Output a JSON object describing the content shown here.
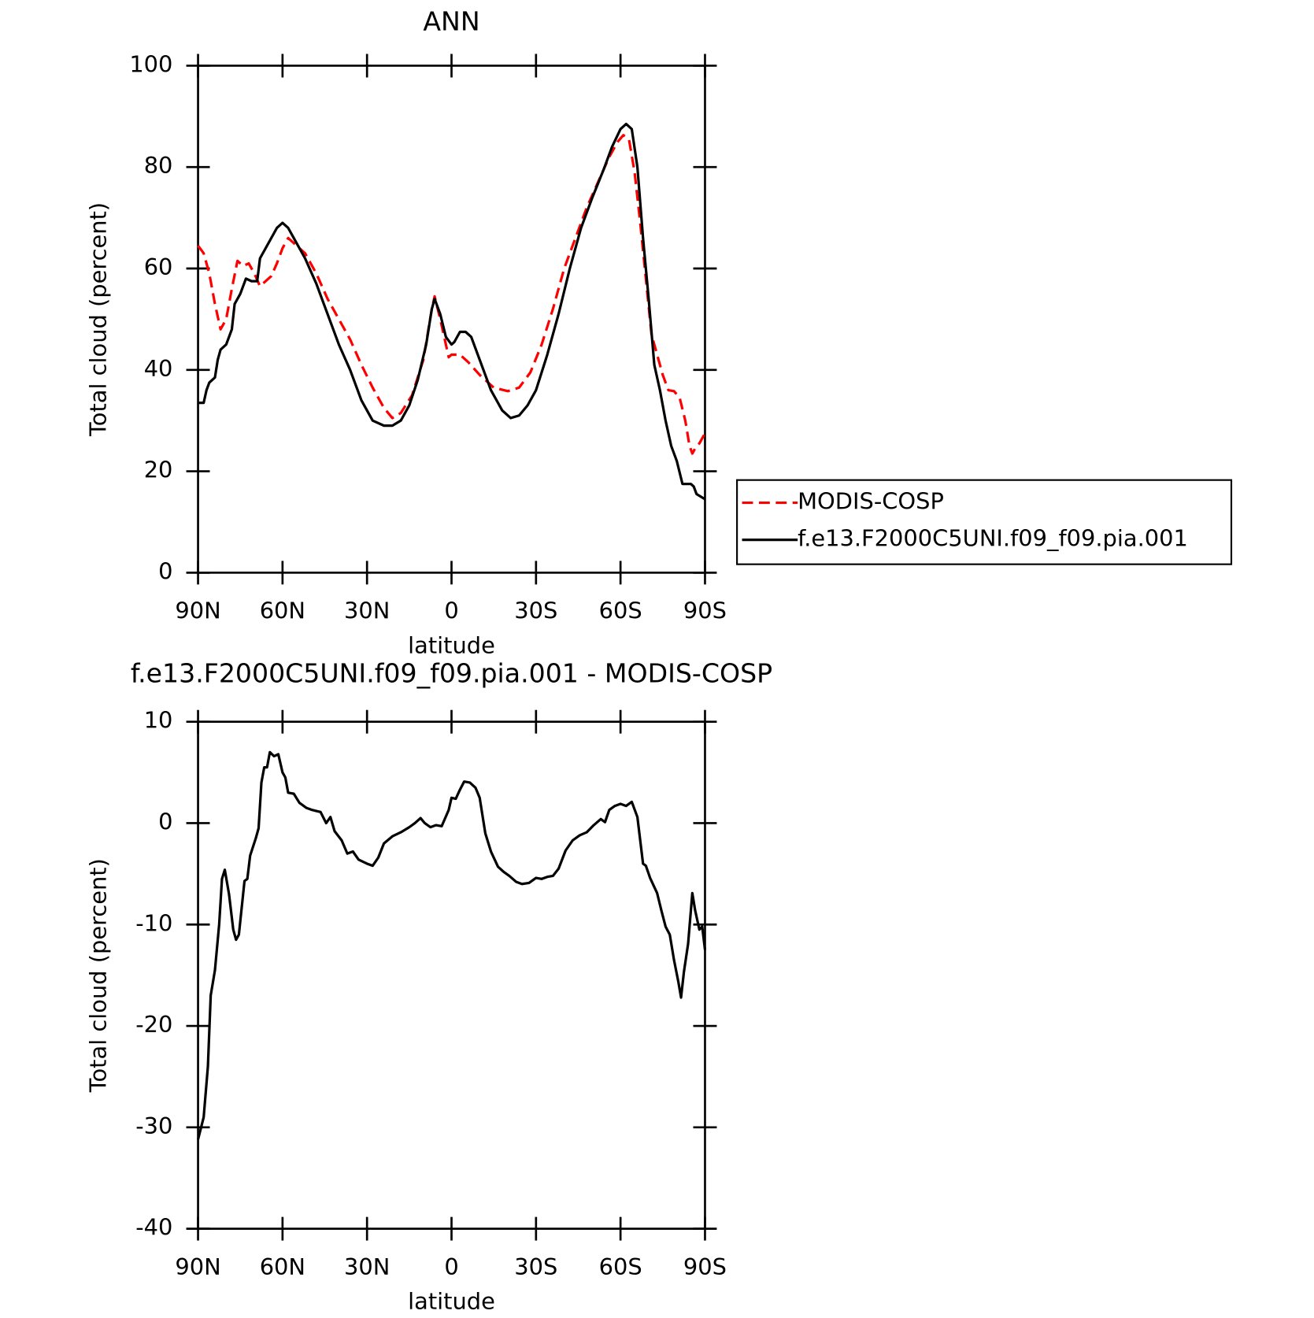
{
  "chart_data": [
    {
      "type": "line",
      "title": "ANN",
      "xlabel": "latitude",
      "ylabel": "Total cloud (percent)",
      "xlim": [
        90,
        -90
      ],
      "xticks": [
        {
          "value": 90,
          "label": "90N"
        },
        {
          "value": 60,
          "label": "60N"
        },
        {
          "value": 30,
          "label": "30N"
        },
        {
          "value": 0,
          "label": "0"
        },
        {
          "value": -30,
          "label": "30S"
        },
        {
          "value": -60,
          "label": "60S"
        },
        {
          "value": -90,
          "label": "90S"
        }
      ],
      "ylim": [
        0,
        100
      ],
      "yticks": [
        0,
        20,
        40,
        60,
        80,
        100
      ],
      "legend": "right",
      "series": [
        {
          "name": "MODIS-COSP",
          "color": "#ff0000",
          "dash": "dashed",
          "x": [
            90,
            88,
            86,
            84,
            82,
            80,
            78,
            76,
            74,
            72,
            70,
            68,
            66,
            64,
            62,
            60,
            58,
            56,
            52,
            48,
            44,
            40,
            36,
            32,
            28,
            24,
            21,
            18,
            14,
            10,
            7,
            6,
            4,
            2,
            1,
            0,
            -3,
            -6,
            -10,
            -15,
            -20,
            -24,
            -28,
            -32,
            -36,
            -40,
            -44,
            -48,
            -52,
            -56,
            -59,
            -61,
            -63,
            -65,
            -67,
            -69,
            -71,
            -73,
            -75,
            -77,
            -79,
            -81,
            -83,
            -84.5,
            -85.5,
            -87,
            -88,
            -90
          ],
          "values": [
            64.5,
            63,
            59,
            53,
            48,
            50,
            56,
            61.5,
            60.5,
            61,
            59,
            56.5,
            57.5,
            58.5,
            61,
            64,
            66,
            65,
            63,
            59,
            54,
            50,
            46,
            41,
            36.5,
            32.5,
            30.5,
            31.5,
            35,
            42,
            52,
            54.5,
            50,
            45,
            42.5,
            43,
            43,
            41.5,
            39,
            36.5,
            35.8,
            36.5,
            39.5,
            45,
            52,
            60,
            66,
            72,
            77,
            82,
            85,
            86.3,
            85.5,
            79,
            69,
            58,
            47,
            43,
            39,
            36,
            35.8,
            34.5,
            30,
            25,
            23.5,
            25,
            25.5,
            27.5
          ]
        },
        {
          "name": "f.e13.F2000C5UNI.f09_f09.pia.001",
          "color": "#000000",
          "dash": "solid",
          "x": [
            90,
            88,
            87,
            86,
            84,
            83,
            82,
            80,
            78,
            77,
            75,
            73,
            71,
            69,
            68,
            66,
            64,
            62,
            60,
            58,
            55,
            52,
            48,
            44,
            40,
            36,
            32,
            28,
            24,
            21,
            18,
            15,
            12,
            9,
            7,
            6,
            4,
            2,
            0,
            -1,
            -3,
            -5,
            -7,
            -10,
            -14,
            -18,
            -21,
            -24,
            -27,
            -30,
            -34,
            -38,
            -42,
            -46,
            -50,
            -54,
            -57,
            -60,
            -62,
            -64,
            -66,
            -68,
            -70,
            -72,
            -74,
            -76,
            -78,
            -80,
            -82,
            -84,
            -85,
            -86,
            -87,
            -90
          ],
          "values": [
            33.5,
            33.5,
            36,
            37.5,
            38.5,
            42,
            44,
            45,
            48,
            53,
            55,
            58,
            57.5,
            57.5,
            62,
            64,
            66,
            68,
            69,
            68,
            65,
            62,
            57,
            51,
            45,
            40,
            34,
            30,
            29,
            29,
            30,
            33,
            38,
            45,
            52,
            54,
            51,
            46.5,
            45,
            45.5,
            47.5,
            47.5,
            46.5,
            42,
            36,
            32,
            30.5,
            31,
            33,
            36,
            43,
            51,
            60,
            68,
            74,
            79.5,
            84,
            87.5,
            88.5,
            87.5,
            80,
            66,
            54,
            41,
            36,
            30,
            25,
            22,
            17.5,
            17.5,
            17.5,
            17,
            15.5,
            14.5
          ]
        }
      ]
    },
    {
      "type": "line",
      "title": "f.e13.F2000C5UNI.f09_f09.pia.001 - MODIS-COSP",
      "xlabel": "latitude",
      "ylabel": "Total cloud (percent)",
      "xlim": [
        90,
        -90
      ],
      "xticks": [
        {
          "value": 90,
          "label": "90N"
        },
        {
          "value": 60,
          "label": "60N"
        },
        {
          "value": 30,
          "label": "30N"
        },
        {
          "value": 0,
          "label": "0"
        },
        {
          "value": -30,
          "label": "30S"
        },
        {
          "value": -60,
          "label": "60S"
        },
        {
          "value": -90,
          "label": "90S"
        }
      ],
      "ylim": [
        -40,
        10
      ],
      "yticks": [
        -40,
        -30,
        -20,
        -10,
        0,
        10
      ],
      "series": [
        {
          "color": "#000000",
          "dash": "solid",
          "x": [
            90,
            88,
            86.5,
            85.5,
            84,
            82.5,
            81.5,
            80.5,
            79,
            77.5,
            76.5,
            75.5,
            73.5,
            72.5,
            71.5,
            69.5,
            68.5,
            67.5,
            66.5,
            65.5,
            64.5,
            63,
            61.5,
            60,
            59,
            58,
            56,
            54,
            51.5,
            49.5,
            48,
            46.5,
            44.5,
            43,
            41.5,
            39,
            37,
            35,
            33,
            30,
            28,
            26,
            24,
            21,
            18,
            15,
            13,
            11,
            9.5,
            7.5,
            5.5,
            3.5,
            1,
            0,
            -1.5,
            -3,
            -4.5,
            -6.5,
            -8.5,
            -10,
            -12,
            -14,
            -16.5,
            -18.5,
            -20.5,
            -23,
            -25,
            -27.5,
            -30,
            -32,
            -34,
            -36,
            -38,
            -40.5,
            -43,
            -45.5,
            -48,
            -50.5,
            -53,
            -54.5,
            -56,
            -58,
            -60,
            -62,
            -64,
            -66,
            -68,
            -69,
            -70.5,
            -73,
            -74.5,
            -76,
            -77.5,
            -79,
            -80.5,
            -81.5,
            -82.5,
            -84,
            -85.5,
            -86.5,
            -88,
            -89,
            -90
          ],
          "values": [
            -31.2,
            -29,
            -24,
            -17,
            -14.5,
            -10,
            -5.5,
            -4.6,
            -7,
            -10.5,
            -11.5,
            -11,
            -5.7,
            -5.5,
            -3.2,
            -1.5,
            -0.5,
            4,
            5.5,
            5.5,
            7,
            6.6,
            6.8,
            5,
            4.5,
            3,
            2.9,
            2,
            1.5,
            1.3,
            1.2,
            1.1,
            0,
            0.6,
            -0.8,
            -1.7,
            -3,
            -2.8,
            -3.6,
            -4,
            -4.2,
            -3.4,
            -2,
            -1.3,
            -0.9,
            -0.4,
            0,
            0.5,
            0,
            -0.4,
            -0.2,
            -0.3,
            1.3,
            2.5,
            2.4,
            3.3,
            4.1,
            4,
            3.5,
            2.5,
            -1,
            -2.8,
            -4.3,
            -4.8,
            -5.2,
            -5.8,
            -6,
            -5.9,
            -5.4,
            -5.5,
            -5.3,
            -5.2,
            -4.5,
            -2.7,
            -1.7,
            -1.2,
            -0.9,
            -0.2,
            0.4,
            0.1,
            1.3,
            1.7,
            1.9,
            1.7,
            2.1,
            0.6,
            -4,
            -4.2,
            -5.4,
            -6.9,
            -8.6,
            -10.2,
            -11,
            -13.5,
            -15.6,
            -17.2,
            -14.7,
            -11.9,
            -6.9,
            -8.6,
            -10.5,
            -10.2,
            -12.5
          ]
        }
      ]
    }
  ]
}
